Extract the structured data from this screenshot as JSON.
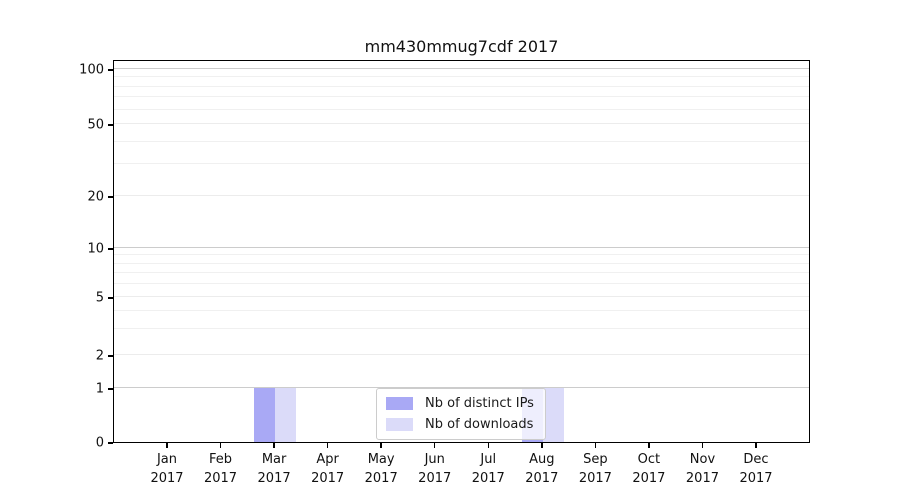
{
  "title": "mm430mmug7cdf 2017",
  "chart_data": {
    "type": "bar",
    "title": "mm430mmug7cdf 2017",
    "categories": [
      "Jan 2017",
      "Feb 2017",
      "Mar 2017",
      "Apr 2017",
      "May 2017",
      "Jun 2017",
      "Jul 2017",
      "Aug 2017",
      "Sep 2017",
      "Oct 2017",
      "Nov 2017",
      "Dec 2017"
    ],
    "series": [
      {
        "name": "Nb of distinct IPs",
        "color": "#a9a9f5",
        "values": [
          0,
          0,
          1,
          0,
          0,
          0,
          0,
          1,
          0,
          0,
          0,
          0
        ]
      },
      {
        "name": "Nb of downloads",
        "color": "#dbdbf9",
        "values": [
          0,
          0,
          1,
          0,
          0,
          0,
          0,
          1,
          0,
          0,
          0,
          0
        ]
      }
    ],
    "xlabel": "",
    "ylabel": "",
    "yscale": "symlog",
    "yticks": [
      0,
      1,
      2,
      5,
      10,
      20,
      50,
      100
    ],
    "ylim": [
      0,
      110
    ],
    "grid": "horizontal",
    "legend_position": "lower center"
  }
}
